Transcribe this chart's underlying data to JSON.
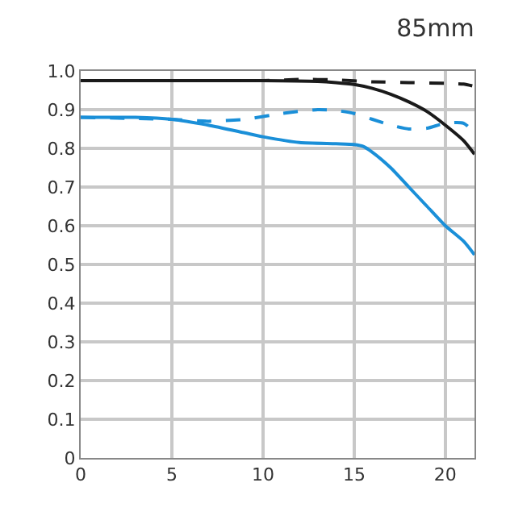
{
  "chart_data": {
    "type": "line",
    "title": "85mm",
    "xlim": [
      0,
      21.6
    ],
    "xticks": [
      0,
      5,
      10,
      15,
      20
    ],
    "ylim": [
      0,
      1
    ],
    "yticks": [
      0,
      0.1,
      0.2,
      0.3,
      0.4,
      0.5,
      0.6,
      0.7,
      0.8,
      0.9,
      {
        "value": 1,
        "label": "1.0"
      }
    ],
    "grid": true,
    "marker": "none",
    "series": [
      {
        "color": "#1a8fd8",
        "line_style": "solid",
        "x": [
          0,
          3,
          5,
          7,
          9,
          10,
          12,
          14,
          15,
          15.5,
          16,
          17,
          18,
          19,
          20,
          21,
          21.6
        ],
        "values": [
          0.88,
          0.88,
          0.875,
          0.86,
          0.84,
          0.83,
          0.815,
          0.812,
          0.81,
          0.805,
          0.79,
          0.75,
          0.7,
          0.65,
          0.6,
          0.56,
          0.525
        ]
      },
      {
        "color": "#1a8fd8",
        "line_style": "dashed",
        "x": [
          0,
          5,
          7,
          9,
          11,
          13,
          14,
          15,
          16,
          17,
          18,
          19,
          20,
          21,
          21.6
        ],
        "values": [
          0.88,
          0.875,
          0.87,
          0.875,
          0.89,
          0.9,
          0.898,
          0.89,
          0.875,
          0.86,
          0.85,
          0.852,
          0.865,
          0.865,
          0.84
        ]
      },
      {
        "color": "#1a1a1a",
        "line_style": "solid",
        "x": [
          0,
          5,
          10,
          13,
          14,
          15,
          16,
          17,
          18,
          19,
          20,
          21,
          21.6
        ],
        "values": [
          0.975,
          0.975,
          0.975,
          0.973,
          0.97,
          0.965,
          0.955,
          0.94,
          0.92,
          0.895,
          0.86,
          0.82,
          0.785
        ]
      },
      {
        "color": "#1a1a1a",
        "line_style": "dashed",
        "x": [
          0,
          5,
          10,
          12,
          14,
          16,
          18,
          20,
          21,
          21.6
        ],
        "values": [
          0.975,
          0.975,
          0.975,
          0.978,
          0.977,
          0.972,
          0.97,
          0.968,
          0.966,
          0.96
        ]
      }
    ]
  }
}
